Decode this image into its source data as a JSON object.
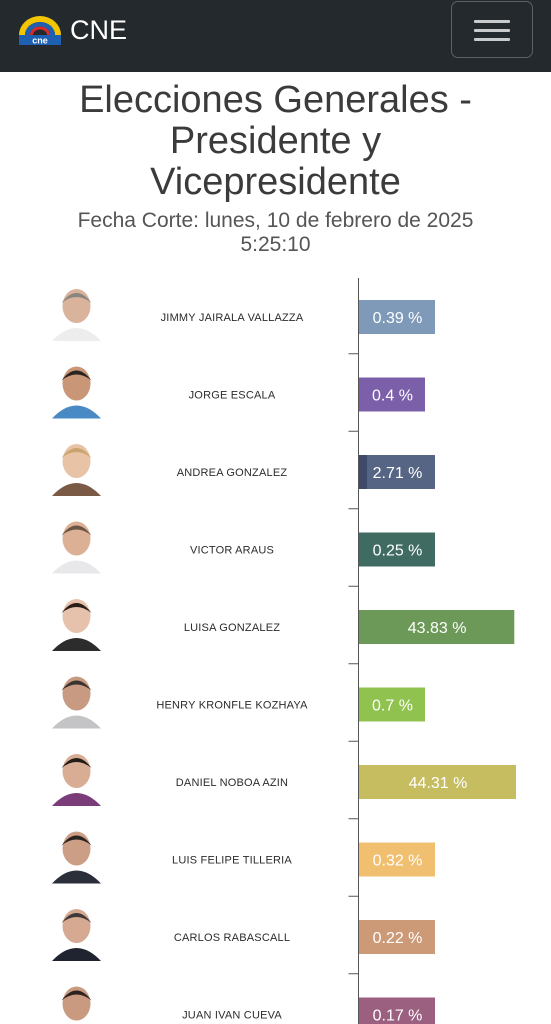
{
  "navbar": {
    "brand": "CNE",
    "logo_text": "cne",
    "menu_icon": "hamburger-menu-icon"
  },
  "page": {
    "title_lines": [
      "Elecciones Generales -",
      "Presidente y",
      "Vicepresidente"
    ],
    "subtitle_lines": [
      "Fecha Corte: lunes, 10 de febrero de 2025",
      "5:25:10"
    ]
  },
  "chart_data": {
    "type": "bar",
    "orientation": "horizontal",
    "categories": [
      "JIMMY JAIRALA VALLAZZA",
      "JORGE ESCALA",
      "ANDREA GONZALEZ",
      "VICTOR ARAUS",
      "LUISA GONZALEZ",
      "HENRY KRONFLE KOZHAYA",
      "DANIEL NOBOA AZIN",
      "LUIS FELIPE TILLERIA",
      "CARLOS RABASCALL",
      "JUAN IVAN CUEVA"
    ],
    "values": [
      0.39,
      0.4,
      2.71,
      0.25,
      43.83,
      0.7,
      44.31,
      0.32,
      0.22,
      0.17
    ],
    "labels": [
      "0.39 %",
      "0.4 %",
      "2.71 %",
      "0.25 %",
      "43.83 %",
      "0.7 %",
      "44.31 %",
      "0.32 %",
      "0.22 %",
      "0.17 %"
    ],
    "colors": [
      "#7e9ab8",
      "#7c5fa9",
      "#576585",
      "#3f6b63",
      "#6c9858",
      "#8fc24f",
      "#c5bd60",
      "#f0c070",
      "#cd9a78",
      "#9b5f7f"
    ],
    "avatar_colors": [
      {
        "skin": "#d9b39b",
        "hair": "#8a8580",
        "shirt": "#ededed"
      },
      {
        "skin": "#c99778",
        "hair": "#2b2522",
        "shirt": "#4a8ac4"
      },
      {
        "skin": "#e8c3a6",
        "hair": "#c9a56d",
        "shirt": "#7a5a45"
      },
      {
        "skin": "#dbb094",
        "hair": "#6b5444",
        "shirt": "#e8e8ea"
      },
      {
        "skin": "#e6c2ac",
        "hair": "#2a1e1a",
        "shirt": "#2c2c2c"
      },
      {
        "skin": "#c89a82",
        "hair": "#3a3330",
        "shirt": "#c4c4c6"
      },
      {
        "skin": "#d8ad93",
        "hair": "#231c18",
        "shirt": "#7a3d7a"
      },
      {
        "skin": "#cc9e86",
        "hair": "#2a2420",
        "shirt": "#2b2f3a"
      },
      {
        "skin": "#d6a992",
        "hair": "#3f3a37",
        "shirt": "#1f2430"
      },
      {
        "skin": "#c99a80",
        "hair": "#2a2320",
        "shirt": "#e8e8ec"
      }
    ],
    "xlim": [
      0,
      50
    ],
    "grid": false,
    "legend": "none"
  }
}
